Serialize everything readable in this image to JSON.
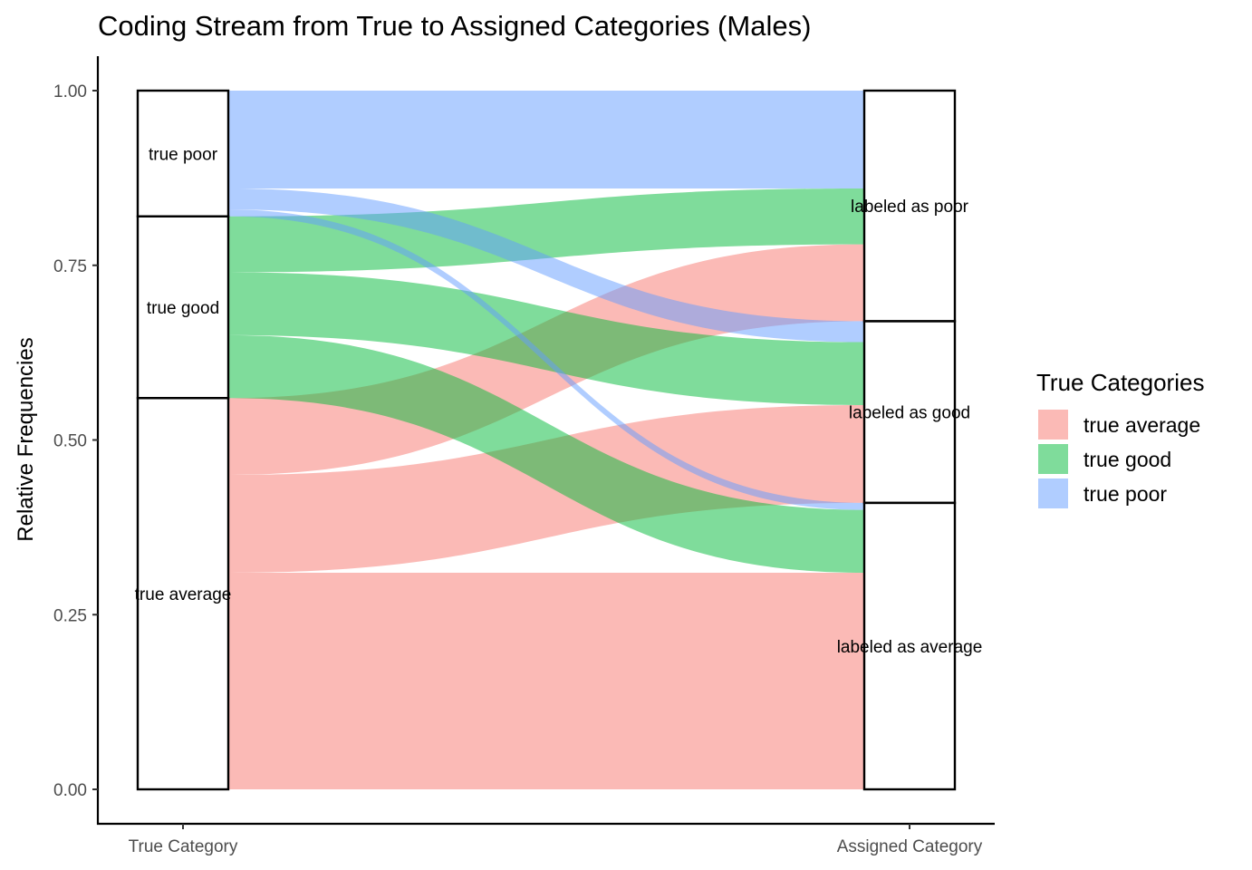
{
  "chart_data": {
    "type": "alluvial",
    "title": "Coding Stream from True to Assigned Categories (Males)",
    "xlabel": "",
    "ylabel": "Relative Frequencies",
    "ylim": [
      0,
      1
    ],
    "yticks": [
      "0.00",
      "0.25",
      "0.50",
      "0.75",
      "1.00"
    ],
    "ytick_values": [
      0,
      0.25,
      0.5,
      0.75,
      1
    ],
    "axes": [
      "True Category",
      "Assigned Category"
    ],
    "legend": {
      "title": "True Categories",
      "position": "right",
      "entries": [
        "true average",
        "true good",
        "true poor"
      ]
    },
    "colors": {
      "true average": "#F8766D",
      "true good": "#00BA38",
      "true poor": "#619CFF"
    },
    "true_strata": [
      {
        "label": "true average",
        "share": 0.56
      },
      {
        "label": "true good",
        "share": 0.26
      },
      {
        "label": "true poor",
        "share": 0.18
      }
    ],
    "assigned_strata": [
      {
        "label": "labeled as average",
        "share": 0.41
      },
      {
        "label": "labeled as good",
        "share": 0.26
      },
      {
        "label": "labeled as poor",
        "share": 0.33
      }
    ],
    "flows": [
      {
        "from": "true average",
        "to": "labeled as average",
        "value": 0.31
      },
      {
        "from": "true average",
        "to": "labeled as good",
        "value": 0.14
      },
      {
        "from": "true average",
        "to": "labeled as poor",
        "value": 0.11
      },
      {
        "from": "true good",
        "to": "labeled as average",
        "value": 0.09
      },
      {
        "from": "true good",
        "to": "labeled as good",
        "value": 0.09
      },
      {
        "from": "true good",
        "to": "labeled as poor",
        "value": 0.08
      },
      {
        "from": "true poor",
        "to": "labeled as average",
        "value": 0.01
      },
      {
        "from": "true poor",
        "to": "labeled as good",
        "value": 0.03
      },
      {
        "from": "true poor",
        "to": "labeled as poor",
        "value": 0.14
      }
    ]
  }
}
